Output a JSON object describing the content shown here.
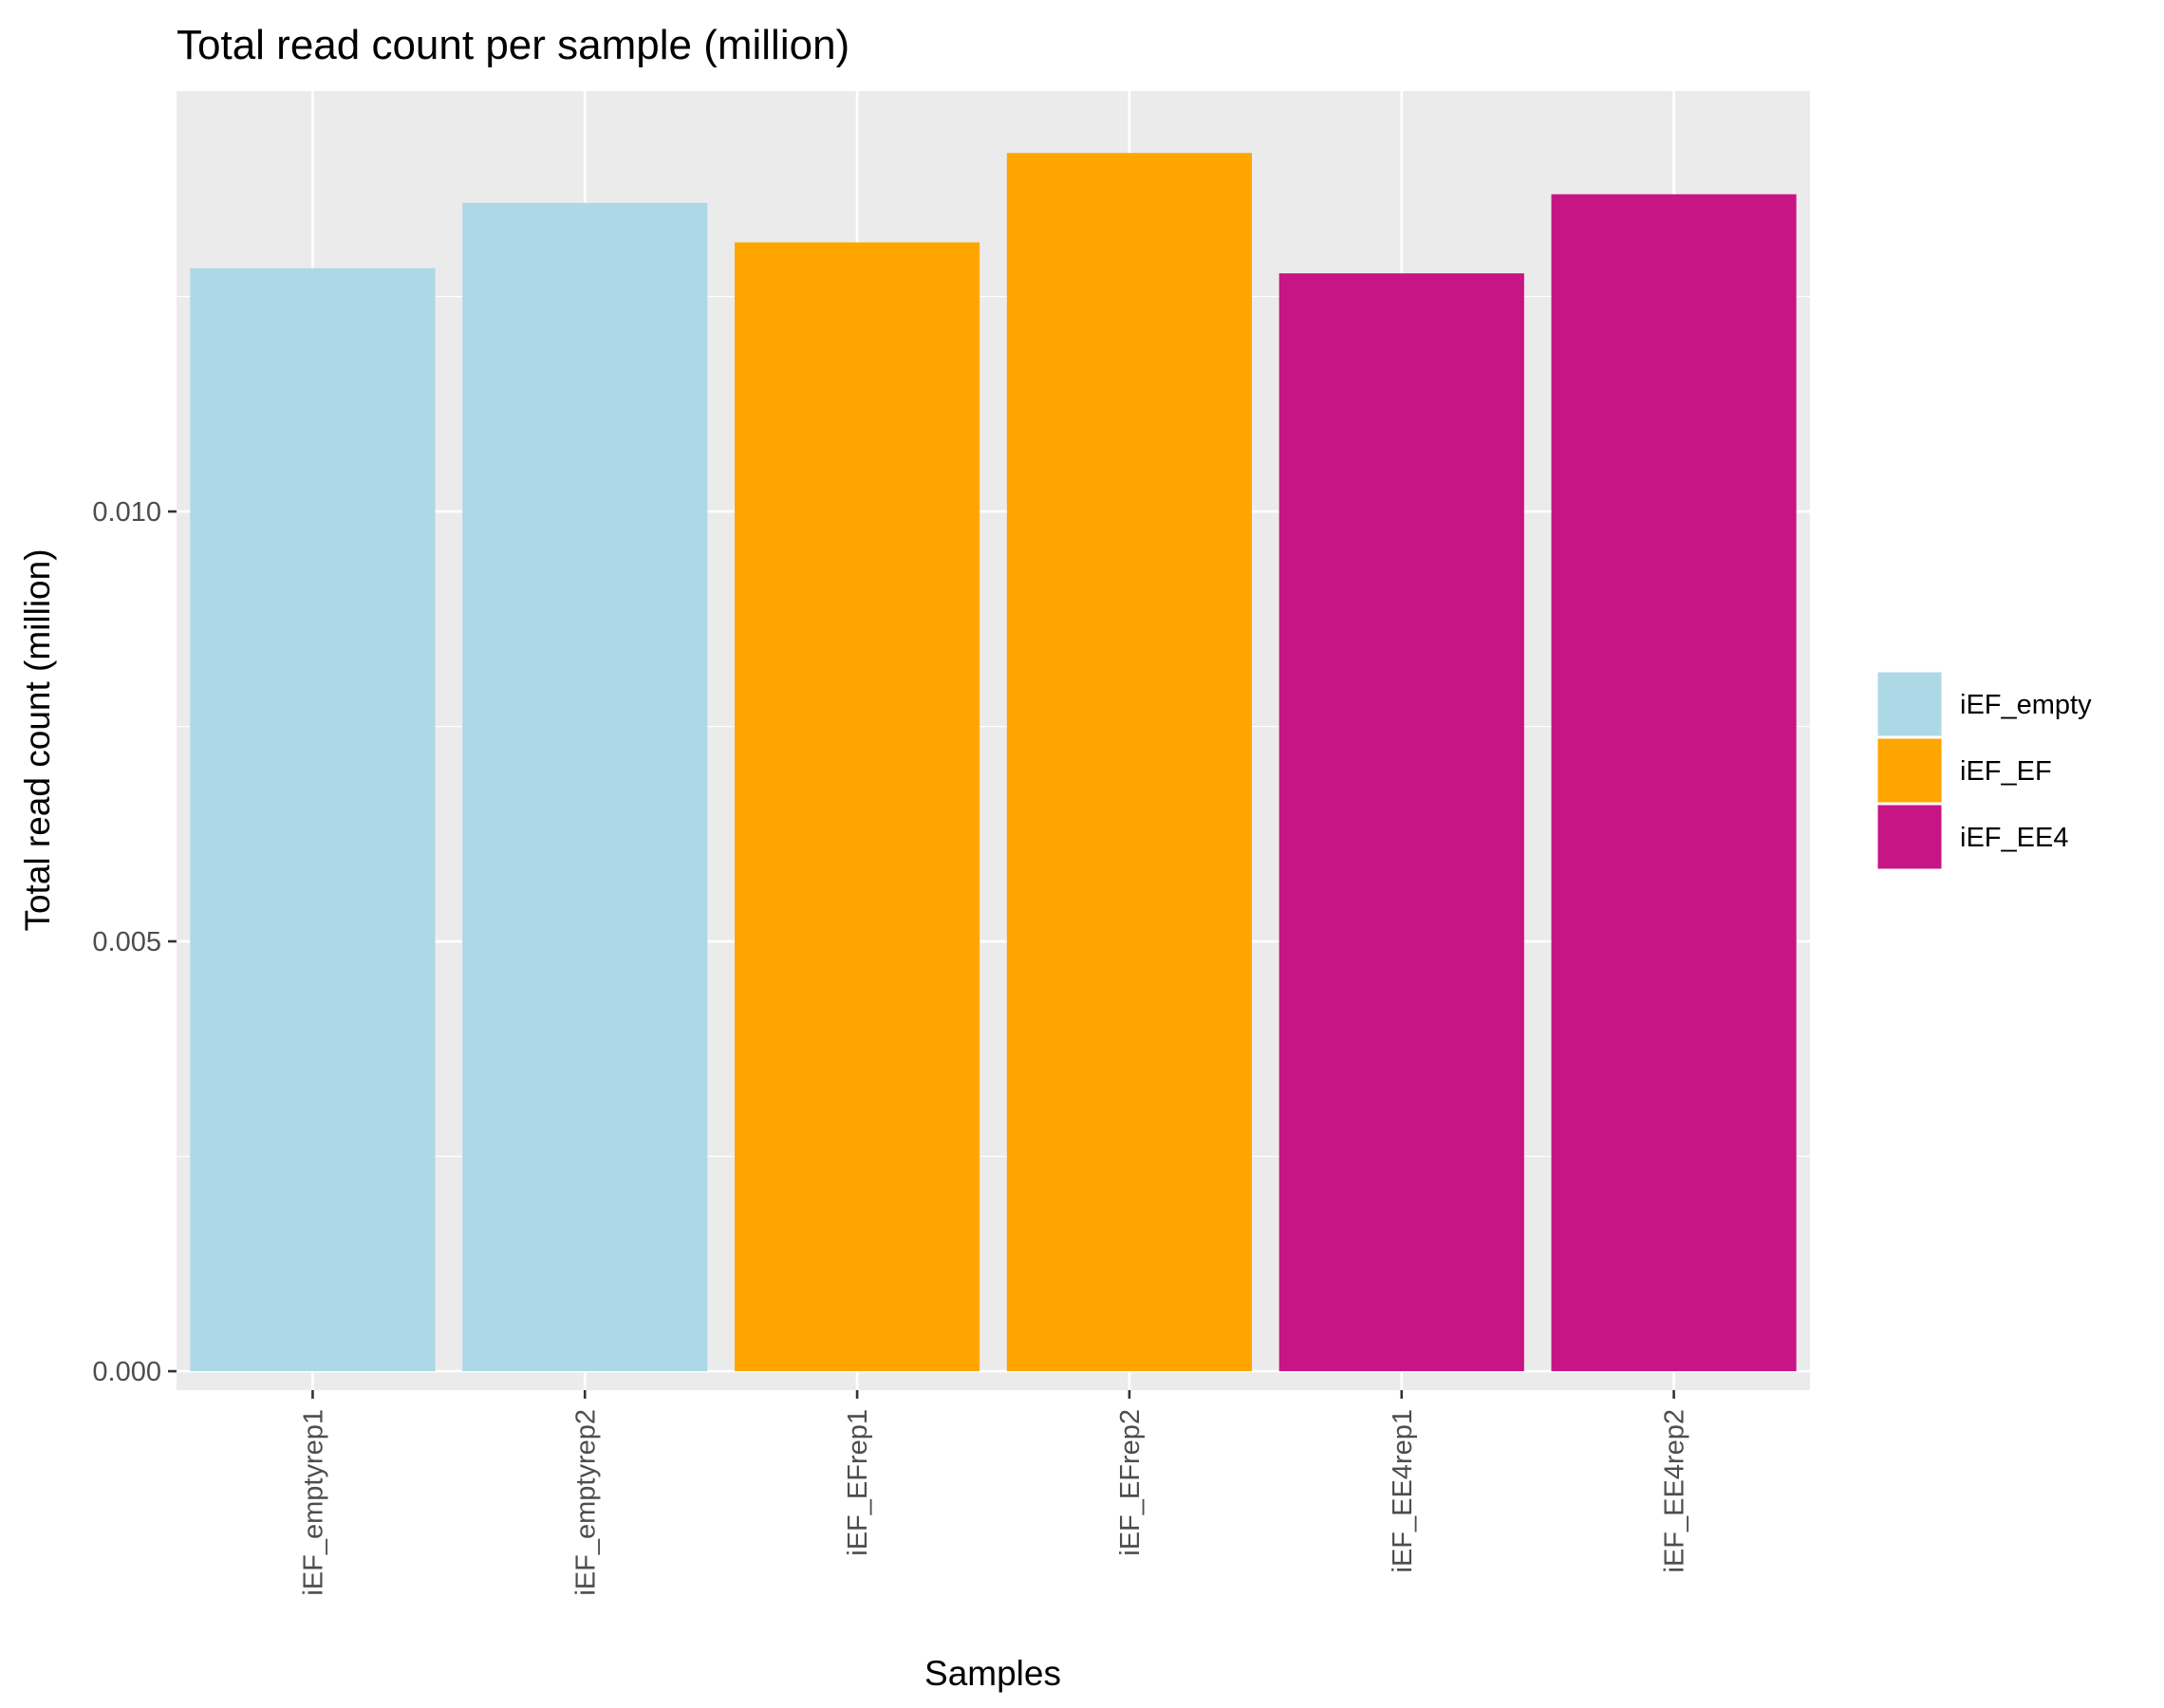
{
  "chart_data": {
    "type": "bar",
    "title": "Total read count per sample (million)",
    "xlabel": "Samples",
    "ylabel": "Total read count (million)",
    "categories": [
      "iEF_emptyrep1",
      "iEF_emptyrep2",
      "iEF_EFrep1",
      "iEF_EFrep2",
      "iEF_EE4rep1",
      "iEF_EE4rep2"
    ],
    "values": [
      0.01283,
      0.01359,
      0.01313,
      0.01417,
      0.01277,
      0.01369
    ],
    "groups": [
      "iEF_empty",
      "iEF_empty",
      "iEF_EF",
      "iEF_EF",
      "iEF_EE4",
      "iEF_EE4"
    ],
    "ylim": [
      -0.00022,
      0.01489
    ],
    "yticks": [
      "0.000",
      "0.005",
      "0.010"
    ],
    "ytick_values": [
      0,
      0.005,
      0.01
    ],
    "grid": true,
    "panel_background": "#ebebeb",
    "legend": {
      "position": "right",
      "entries": [
        {
          "label": "iEF_empty",
          "color": "#add8e6"
        },
        {
          "label": "iEF_EF",
          "color": "#ffa500"
        },
        {
          "label": "iEF_EE4",
          "color": "#c71585"
        }
      ]
    }
  }
}
